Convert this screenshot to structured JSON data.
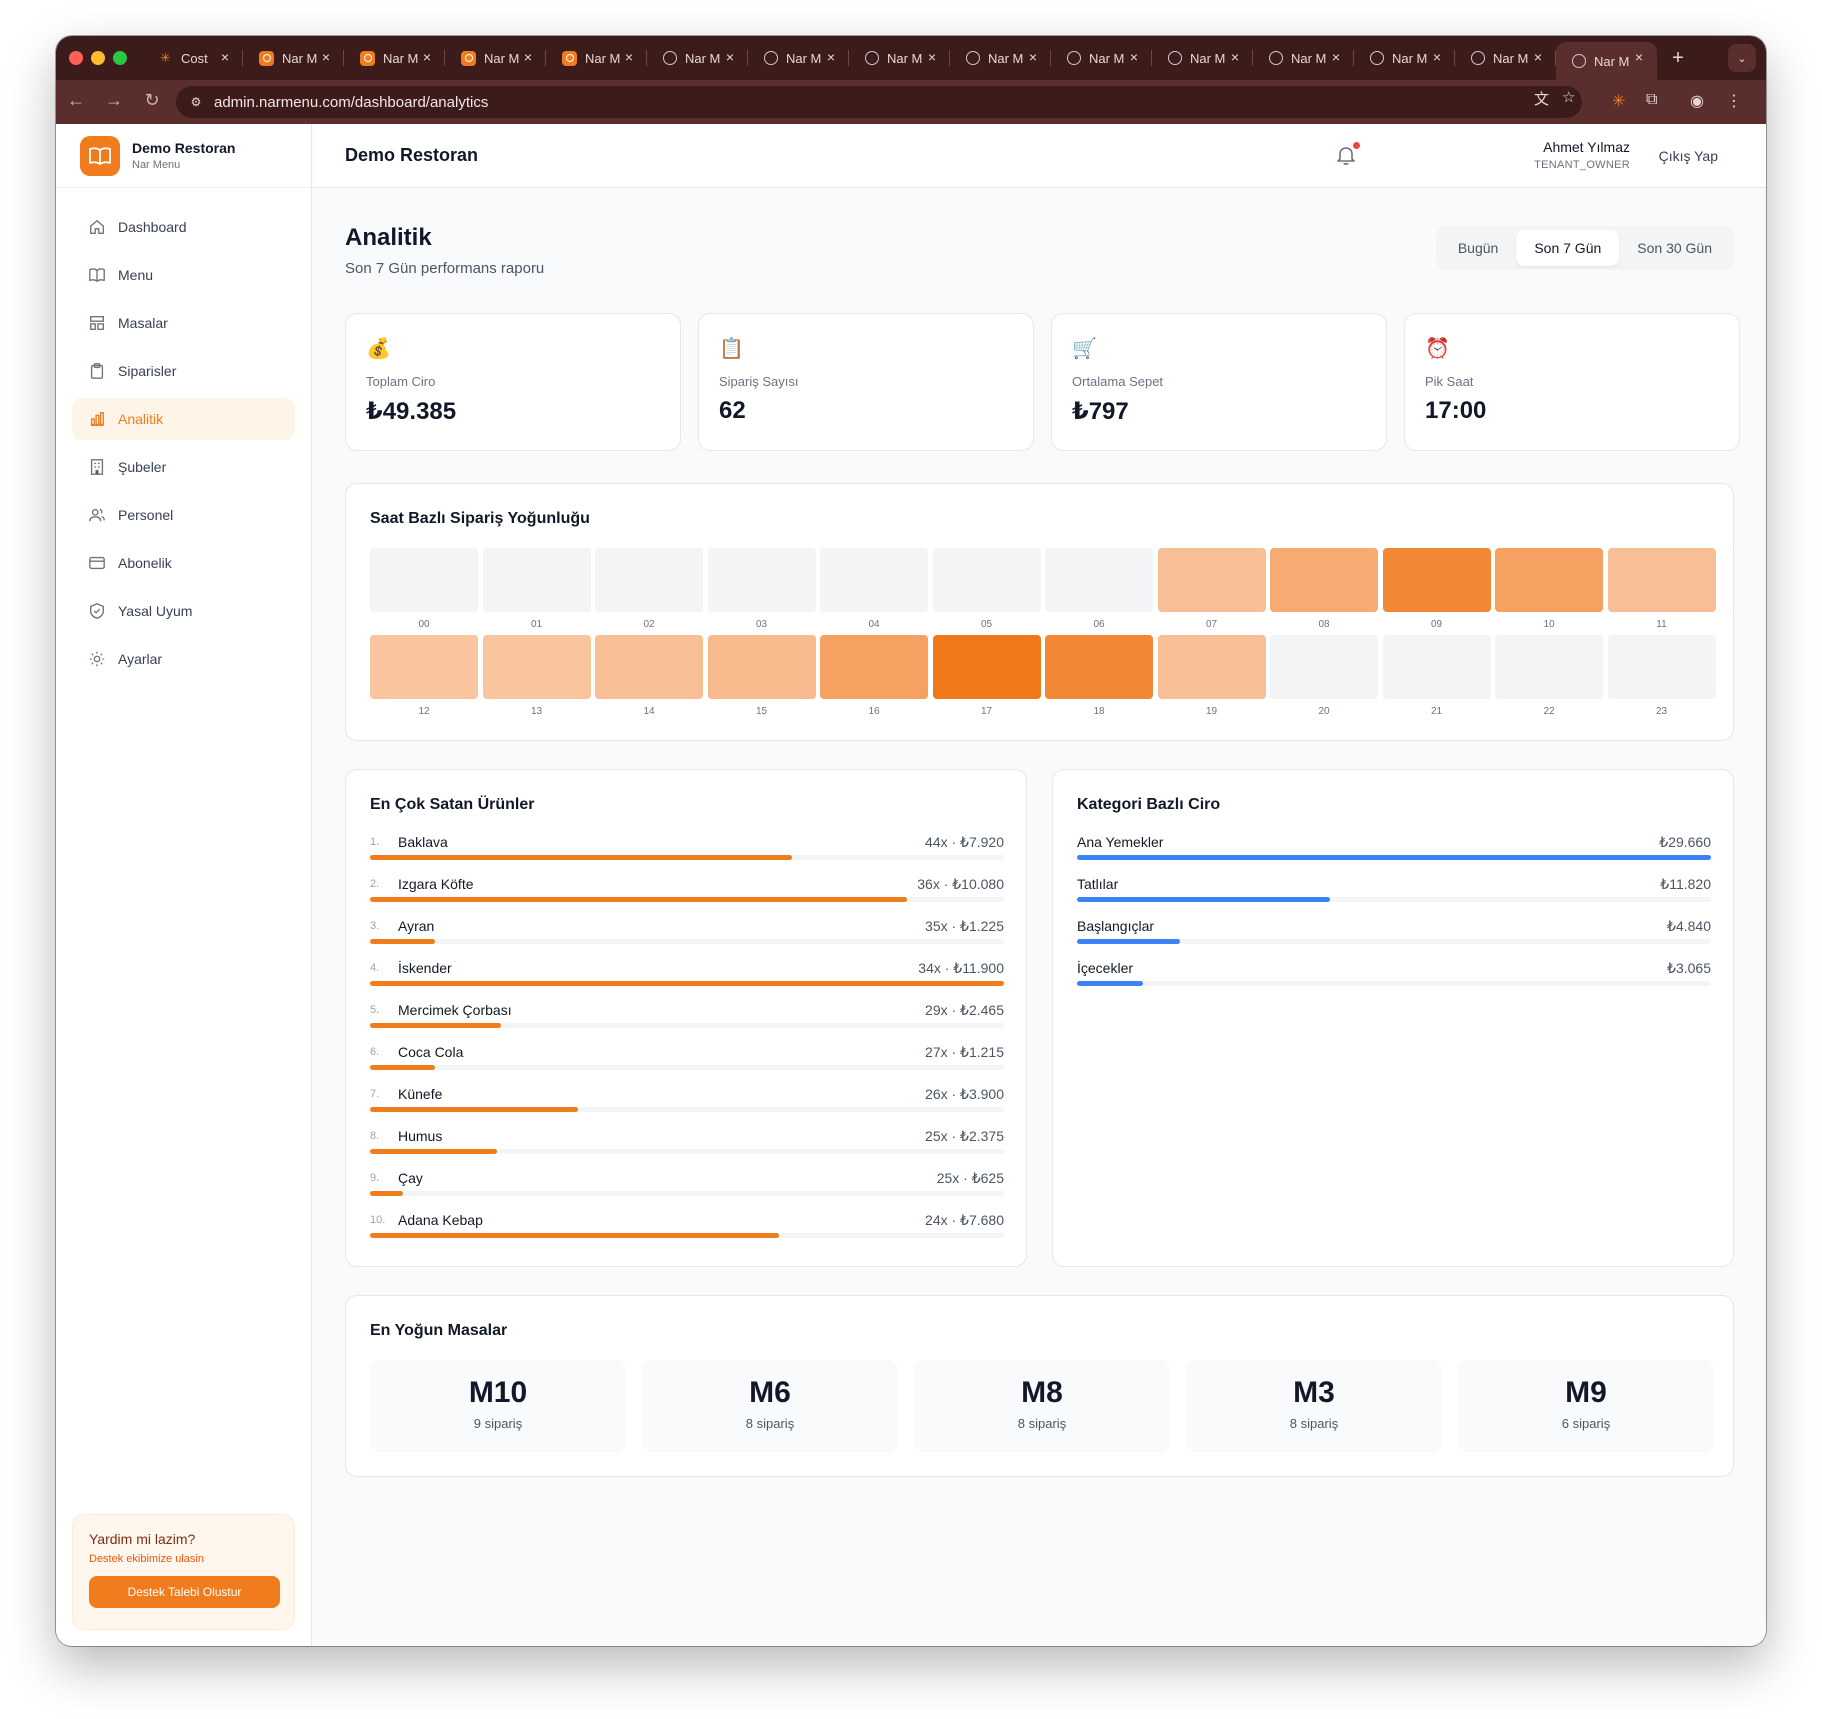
{
  "browser": {
    "tabs": [
      {
        "title": "Cost",
        "icon": "star-icon"
      },
      {
        "title": "Nar M",
        "icon": "narmenu-icon"
      },
      {
        "title": "Nar M",
        "icon": "narmenu-icon"
      },
      {
        "title": "Nar M",
        "icon": "narmenu-icon"
      },
      {
        "title": "Nar M",
        "icon": "narmenu-icon"
      },
      {
        "title": "Nar M",
        "icon": "globe-icon"
      },
      {
        "title": "Nar M",
        "icon": "globe-icon"
      },
      {
        "title": "Nar M",
        "icon": "globe-icon"
      },
      {
        "title": "Nar M",
        "icon": "globe-icon"
      },
      {
        "title": "Nar M",
        "icon": "globe-icon"
      },
      {
        "title": "Nar M",
        "icon": "globe-icon"
      },
      {
        "title": "Nar M",
        "icon": "globe-icon"
      },
      {
        "title": "Nar M",
        "icon": "globe-icon"
      },
      {
        "title": "Nar M",
        "icon": "globe-icon"
      },
      {
        "title": "Nar M",
        "icon": "globe-icon",
        "active": true
      }
    ],
    "url": "admin.narmenu.com/dashboard/analytics"
  },
  "brand": {
    "name": "Demo Restoran",
    "sub": "Nar Menu"
  },
  "sidebar": {
    "items": [
      {
        "label": "Dashboard",
        "icon": "home-icon"
      },
      {
        "label": "Menu",
        "icon": "book-icon"
      },
      {
        "label": "Masalar",
        "icon": "table-icon"
      },
      {
        "label": "Siparisler",
        "icon": "clipboard-icon"
      },
      {
        "label": "Analitik",
        "icon": "chart-icon",
        "active": true
      },
      {
        "label": "Şubeler",
        "icon": "building-icon"
      },
      {
        "label": "Personel",
        "icon": "users-icon"
      },
      {
        "label": "Abonelik",
        "icon": "card-icon"
      },
      {
        "label": "Yasal Uyum",
        "icon": "shield-icon"
      },
      {
        "label": "Ayarlar",
        "icon": "gear-icon"
      }
    ],
    "help": {
      "title": "Yardim mi lazim?",
      "sub": "Destek ekibimize ulasin",
      "button": "Destek Talebi Olustur"
    }
  },
  "header": {
    "title": "Demo Restoran",
    "user_name": "Ahmet Yılmaz",
    "user_role": "TENANT_OWNER",
    "logout": "Çıkış Yap"
  },
  "page": {
    "title": "Analitik",
    "subtitle": "Son 7 Gün performans raporu",
    "ranges": [
      "Bugün",
      "Son 7 Gün",
      "Son 30 Gün"
    ],
    "active_range": 1
  },
  "kpis": [
    {
      "icon": "money-bag-icon",
      "glyph": "💰",
      "label": "Toplam Ciro",
      "value": "₺49.385"
    },
    {
      "icon": "clipboard-icon",
      "glyph": "📋",
      "label": "Sipariş Sayısı",
      "value": "62"
    },
    {
      "icon": "cart-icon",
      "glyph": "🛒",
      "label": "Ortalama Sepet",
      "value": "₺797"
    },
    {
      "icon": "alarm-clock-icon",
      "glyph": "⏰",
      "label": "Pik Saat",
      "value": "17:00"
    }
  ],
  "heatmap": {
    "title": "Saat Bazlı Sipariş Yoğunluğu",
    "hours": [
      "00",
      "01",
      "02",
      "03",
      "04",
      "05",
      "06",
      "07",
      "08",
      "09",
      "10",
      "11",
      "12",
      "13",
      "14",
      "15",
      "16",
      "17",
      "18",
      "19",
      "20",
      "21",
      "22",
      "23"
    ],
    "intensity": [
      0,
      0,
      0,
      0,
      0,
      0,
      0,
      0.3,
      0.5,
      0.85,
      0.6,
      0.3,
      0.25,
      0.25,
      0.3,
      0.35,
      0.6,
      1.0,
      0.85,
      0.3,
      0,
      0,
      0,
      0
    ]
  },
  "products": {
    "title": "En Çok Satan Ürünler",
    "items": [
      {
        "rank": "1.",
        "name": "Baklava",
        "value": "44x · ₺7.920",
        "revenue": 7920
      },
      {
        "rank": "2.",
        "name": "Izgara Köfte",
        "value": "36x · ₺10.080",
        "revenue": 10080
      },
      {
        "rank": "3.",
        "name": "Ayran",
        "value": "35x · ₺1.225",
        "revenue": 1225
      },
      {
        "rank": "4.",
        "name": "İskender",
        "value": "34x · ₺11.900",
        "revenue": 11900
      },
      {
        "rank": "5.",
        "name": "Mercimek Çorbası",
        "value": "29x · ₺2.465",
        "revenue": 2465
      },
      {
        "rank": "6.",
        "name": "Coca Cola",
        "value": "27x · ₺1.215",
        "revenue": 1215
      },
      {
        "rank": "7.",
        "name": "Künefe",
        "value": "26x · ₺3.900",
        "revenue": 3900
      },
      {
        "rank": "8.",
        "name": "Humus",
        "value": "25x · ₺2.375",
        "revenue": 2375
      },
      {
        "rank": "9.",
        "name": "Çay",
        "value": "25x · ₺625",
        "revenue": 625
      },
      {
        "rank": "10.",
        "name": "Adana Kebap",
        "value": "24x · ₺7.680",
        "revenue": 7680
      }
    ]
  },
  "categories": {
    "title": "Kategori Bazlı Ciro",
    "items": [
      {
        "name": "Ana Yemekler",
        "value": "₺29.660",
        "revenue": 29660
      },
      {
        "name": "Tatlılar",
        "value": "₺11.820",
        "revenue": 11820
      },
      {
        "name": "Başlangıçlar",
        "value": "₺4.840",
        "revenue": 4840
      },
      {
        "name": "İçecekler",
        "value": "₺3.065",
        "revenue": 3065
      }
    ]
  },
  "tables": {
    "title": "En Yoğun Masalar",
    "items": [
      {
        "name": "M10",
        "count": "9 sipariş"
      },
      {
        "name": "M6",
        "count": "8 sipariş"
      },
      {
        "name": "M8",
        "count": "8 sipariş"
      },
      {
        "name": "M3",
        "count": "8 sipariş"
      },
      {
        "name": "M9",
        "count": "6 sipariş"
      }
    ]
  },
  "colors": {
    "accent": "#f07c1e",
    "category_bar": "#3b82f6",
    "heat_empty": "#f3f4f6"
  }
}
